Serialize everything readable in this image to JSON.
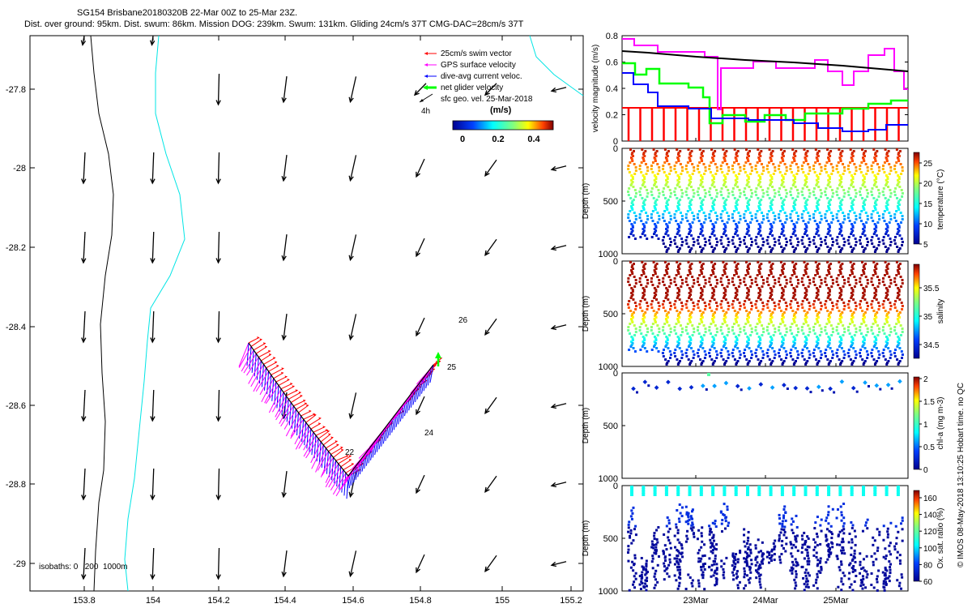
{
  "header": {
    "line1": "SG154 Brisbane20180320B 22-Mar 00Z to 25-Mar 23Z.",
    "line2": "Dist. over ground: 95km. Dist. swum: 86km. Mission DOG: 239km. Swum: 131km. Gliding 24cm/s 37T CMG-DAC=28cm/s 37T"
  },
  "credit": "© IMOS 08-May-2018 13:10:25 Hobart time. no QC",
  "colors": {
    "red": "#ff0000",
    "magenta": "#ff00ff",
    "blue": "#0000ff",
    "green": "#00ff00",
    "black": "#000000",
    "cyan": "#00e5e5"
  },
  "map": {
    "x_ticks": [
      "153.8",
      "154",
      "154.2",
      "154.4",
      "154.6",
      "154.8",
      "155",
      "155.2"
    ],
    "y_ticks": [
      "-27.8",
      "-28",
      "-28.2",
      "-28.4",
      "-28.6",
      "-28.8",
      "-29"
    ],
    "legend": [
      {
        "label": "25cm/s swim vector",
        "color": "#ff0000"
      },
      {
        "label": "GPS surface velocity",
        "color": "#ff00ff"
      },
      {
        "label": "dive-avg current veloc.",
        "color": "#0000ff"
      },
      {
        "label": "net glider velocity",
        "color": "#00ff00"
      },
      {
        "label": "sfc geo. vel. 25-Mar-2018",
        "color": "#000000"
      }
    ],
    "legend_4h": "4h",
    "colorbar": {
      "title": "(m/s)",
      "ticks": [
        "0",
        "0.2",
        "0.4"
      ]
    },
    "isobaths": "isobaths: 0   200  1000m",
    "day_labels": [
      "22",
      "24",
      "25",
      "26"
    ]
  },
  "panels": {
    "velocity": {
      "ylabel": "velocity magnitude (m/s)",
      "ticks": [
        "0.8",
        "0.6",
        "0.4",
        "0.2",
        "0"
      ]
    },
    "temperature": {
      "ylabel": "Depth (m)",
      "cblabel": "temperature (°C)",
      "yticks": [
        "0",
        "500",
        "1000"
      ],
      "cbticks": [
        "25",
        "20",
        "15",
        "10",
        "5"
      ]
    },
    "salinity": {
      "ylabel": "Depth (m)",
      "cblabel": "salinity",
      "yticks": [
        "0",
        "500",
        "1000"
      ],
      "cbticks": [
        "35.5",
        "35",
        "34.5"
      ]
    },
    "chla": {
      "ylabel": "Depth (m)",
      "cblabel": "chl-a (mg m-3)",
      "yticks": [
        "0",
        "500",
        "1000"
      ],
      "cbticks": [
        "2",
        "1.5",
        "1",
        "0.5",
        "0"
      ]
    },
    "oxygen": {
      "ylabel": "Depth (m)",
      "cblabel": "Ox. sat. ratio (%)",
      "yticks": [
        "0",
        "500",
        "1000"
      ],
      "cbticks": [
        "160",
        "140",
        "120",
        "100",
        "80",
        "60"
      ]
    },
    "time_ticks": [
      "23Mar",
      "24Mar",
      "25Mar"
    ]
  }
}
